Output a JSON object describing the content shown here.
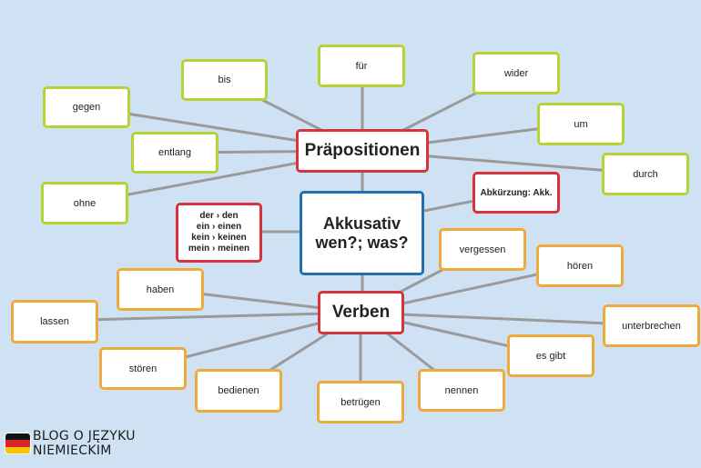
{
  "center": {
    "line1": "Akkusativ",
    "line2": "wen?; was?"
  },
  "praepositionen": {
    "title": "Präpositionen",
    "items": [
      "bis",
      "für",
      "wider",
      "gegen",
      "um",
      "entlang",
      "durch",
      "ohne"
    ]
  },
  "verben": {
    "title": "Verben",
    "items": [
      "vergessen",
      "hören",
      "haben",
      "lassen",
      "unterbrechen",
      "es gibt",
      "stören",
      "bedienen",
      "betrügen",
      "nennen"
    ]
  },
  "articles": [
    "der › den",
    "ein › einen",
    "kein › keinen",
    "mein › meinen"
  ],
  "abbreviation": "Abkürzung: Akk.",
  "logo": {
    "line1": "BLOG O JĘZYKU",
    "line2": "NIEMIECKIM"
  },
  "colors": {
    "background": "#cfe2f3",
    "preposition_border": "#b6d334",
    "verb_border": "#f0a93c",
    "hub_border": "#d8323c",
    "center_border": "#1f6fb2",
    "connector": "#9a9a9a"
  }
}
